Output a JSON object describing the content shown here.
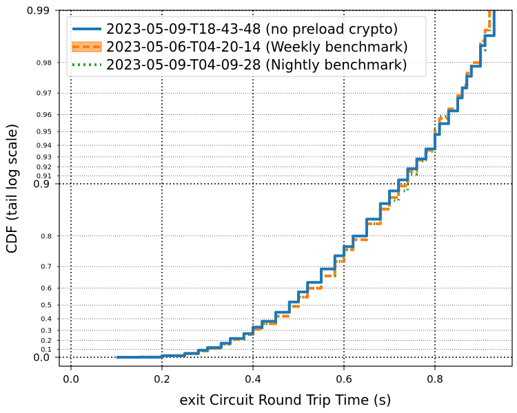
{
  "chart_data": {
    "type": "line",
    "title": "",
    "xlabel": "exit Circuit Round Trip Time (s)",
    "ylabel": "CDF (tail log scale)",
    "xlim": [
      -0.025,
      0.97
    ],
    "x_ticks": [
      "0.0",
      "0.2",
      "0.4",
      "0.6",
      "0.8"
    ],
    "x_tick_values": [
      0.0,
      0.2,
      0.4,
      0.6,
      0.8
    ],
    "y_scale": "tail-log",
    "y_major_ticks": [
      {
        "value": 0.0,
        "label": "0.0"
      },
      {
        "value": 0.9,
        "label": "0.9"
      },
      {
        "value": 0.99,
        "label": "0.99"
      }
    ],
    "y_minor_ticks": [
      {
        "value": 0.1,
        "label": "0.1"
      },
      {
        "value": 0.2,
        "label": "0.2"
      },
      {
        "value": 0.3,
        "label": "0.3"
      },
      {
        "value": 0.4,
        "label": "0.4"
      },
      {
        "value": 0.5,
        "label": "0.5"
      },
      {
        "value": 0.6,
        "label": "0.6"
      },
      {
        "value": 0.7,
        "label": "0.7"
      },
      {
        "value": 0.8,
        "label": "0.8"
      },
      {
        "value": 0.91,
        "label": "0.91"
      },
      {
        "value": 0.92,
        "label": "0.92"
      },
      {
        "value": 0.93,
        "label": "0.93"
      },
      {
        "value": 0.94,
        "label": "0.94"
      },
      {
        "value": 0.95,
        "label": "0.95"
      },
      {
        "value": 0.96,
        "label": "0.96"
      },
      {
        "value": 0.97,
        "label": "0.97"
      },
      {
        "value": 0.98,
        "label": "0.98"
      }
    ],
    "grid": true,
    "legend_position": "top-left",
    "series": [
      {
        "name": "2023-05-09-T18-43-48 (no preload crypto)",
        "color": "#1f77b4",
        "style": "solid",
        "x": [
          0.1,
          0.15,
          0.2,
          0.25,
          0.28,
          0.3,
          0.33,
          0.35,
          0.38,
          0.4,
          0.42,
          0.45,
          0.48,
          0.5,
          0.52,
          0.55,
          0.58,
          0.6,
          0.62,
          0.65,
          0.68,
          0.7,
          0.72,
          0.74,
          0.76,
          0.78,
          0.8,
          0.81,
          0.83,
          0.85,
          0.86,
          0.87,
          0.88,
          0.9,
          0.91,
          0.93
        ],
        "y": [
          0.0,
          0.001,
          0.02,
          0.05,
          0.09,
          0.12,
          0.17,
          0.22,
          0.27,
          0.33,
          0.38,
          0.45,
          0.52,
          0.58,
          0.63,
          0.69,
          0.74,
          0.77,
          0.8,
          0.84,
          0.87,
          0.89,
          0.905,
          0.918,
          0.928,
          0.937,
          0.948,
          0.955,
          0.962,
          0.968,
          0.972,
          0.976,
          0.979,
          0.984,
          0.986,
          0.99
        ]
      },
      {
        "name": "2023-05-06-T04-20-14 (Weekly benchmark)",
        "color": "#ff7f0e",
        "style": "dashed",
        "x": [
          0.1,
          0.15,
          0.2,
          0.25,
          0.28,
          0.3,
          0.33,
          0.35,
          0.38,
          0.4,
          0.42,
          0.45,
          0.48,
          0.5,
          0.52,
          0.55,
          0.58,
          0.6,
          0.62,
          0.65,
          0.68,
          0.7,
          0.72,
          0.74,
          0.76,
          0.78,
          0.8,
          0.81,
          0.83,
          0.85,
          0.86,
          0.87,
          0.88,
          0.9,
          0.91,
          0.92
        ],
        "y": [
          0.0,
          0.001,
          0.02,
          0.045,
          0.08,
          0.11,
          0.16,
          0.21,
          0.26,
          0.31,
          0.36,
          0.42,
          0.49,
          0.55,
          0.6,
          0.66,
          0.72,
          0.76,
          0.79,
          0.83,
          0.86,
          0.88,
          0.897,
          0.915,
          0.927,
          0.936,
          0.95,
          0.958,
          0.963,
          0.969,
          0.973,
          0.977,
          0.98,
          0.985,
          0.987,
          0.99
        ]
      },
      {
        "name": "2023-05-09-T04-09-28 (Nightly benchmark)",
        "color": "#2ca02c",
        "style": "dotted",
        "x": [
          0.1,
          0.15,
          0.2,
          0.25,
          0.28,
          0.3,
          0.33,
          0.35,
          0.38,
          0.4,
          0.42,
          0.45,
          0.48,
          0.5,
          0.52,
          0.55,
          0.58,
          0.6,
          0.62,
          0.65,
          0.68,
          0.7,
          0.72,
          0.74,
          0.76,
          0.78,
          0.8,
          0.81,
          0.83,
          0.85,
          0.86,
          0.87,
          0.88,
          0.9,
          0.91,
          0.92
        ],
        "y": [
          0.0,
          0.001,
          0.02,
          0.045,
          0.08,
          0.11,
          0.16,
          0.21,
          0.26,
          0.31,
          0.36,
          0.42,
          0.49,
          0.55,
          0.6,
          0.66,
          0.72,
          0.76,
          0.79,
          0.83,
          0.86,
          0.875,
          0.89,
          0.912,
          0.926,
          0.935,
          0.951,
          0.959,
          0.962,
          0.968,
          0.972,
          0.976,
          0.979,
          0.983,
          0.986,
          0.99
        ]
      }
    ]
  }
}
